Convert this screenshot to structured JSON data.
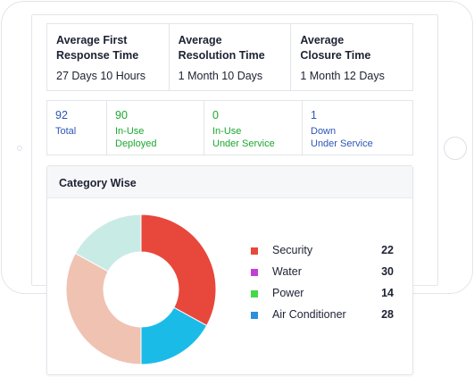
{
  "average_times": [
    {
      "title_line1": "Average First",
      "title_line2": "Response Time",
      "value": "27 Days 10 Hours"
    },
    {
      "title_line1": "Average",
      "title_line2": "Resolution Time",
      "value": "1 Month 10 Days"
    },
    {
      "title_line1": "Average",
      "title_line2": "Closure Time",
      "value": "1 Month 12 Days"
    }
  ],
  "counts": [
    {
      "number": "92",
      "label_line1": "Total",
      "label_line2": "",
      "color": "#2d55b8"
    },
    {
      "number": "90",
      "label_line1": "In-Use",
      "label_line2": "Deployed",
      "color": "#1aa82e"
    },
    {
      "number": "0",
      "label_line1": "In-Use",
      "label_line2": "Under Service",
      "color": "#1aa82e"
    },
    {
      "number": "1",
      "label_line1": "Down",
      "label_line2": "Under Service",
      "color": "#2d55b8"
    }
  ],
  "category_wise": {
    "title": "Category Wise",
    "legend": [
      {
        "label": "Security",
        "value": "22",
        "color": "#e8473b"
      },
      {
        "label": "Water",
        "value": "30",
        "color": "#c13fd8"
      },
      {
        "label": "Power",
        "value": "14",
        "color": "#45d84a"
      },
      {
        "label": "Air Conditioner",
        "value": "28",
        "color": "#2c8fdc"
      }
    ]
  },
  "chart_data": {
    "type": "pie",
    "donut": true,
    "slices": [
      {
        "value": 33,
        "color": "#e8473b"
      },
      {
        "value": 17,
        "color": "#1bbbe8"
      },
      {
        "value": 33,
        "color": "#f0c2b2"
      },
      {
        "value": 17,
        "color": "#c8ebe6"
      }
    ]
  }
}
